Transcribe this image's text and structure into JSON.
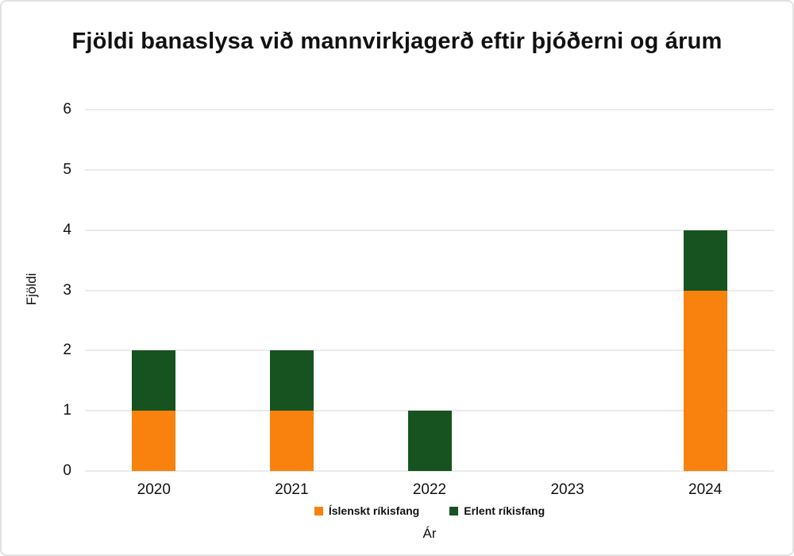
{
  "title": "Fjöldi banaslysa við mannvirkjagerð eftir þjóðerni og árum",
  "chart_data": {
    "type": "bar",
    "stacked": true,
    "title": "Fjöldi banaslysa við mannvirkjagerð eftir þjóðerni og árum",
    "categories": [
      "2020",
      "2021",
      "2022",
      "2023",
      "2024"
    ],
    "series": [
      {
        "name": "Íslenskt ríkisfang",
        "color": "#F8820D",
        "values": [
          1,
          1,
          0,
          0,
          3
        ]
      },
      {
        "name": "Erlent ríkisfang",
        "color": "#175320",
        "values": [
          1,
          1,
          1,
          0,
          1
        ]
      }
    ],
    "xlabel": "Ár",
    "ylabel": "Fjöldi",
    "ylim": [
      0,
      6
    ],
    "yticks": [
      0,
      1,
      2,
      3,
      4,
      5,
      6
    ],
    "grid": true,
    "gridline_color": "#ebebeb",
    "legend_position": "bottom",
    "background_color": "#ffffff",
    "text_color": "#111111"
  }
}
